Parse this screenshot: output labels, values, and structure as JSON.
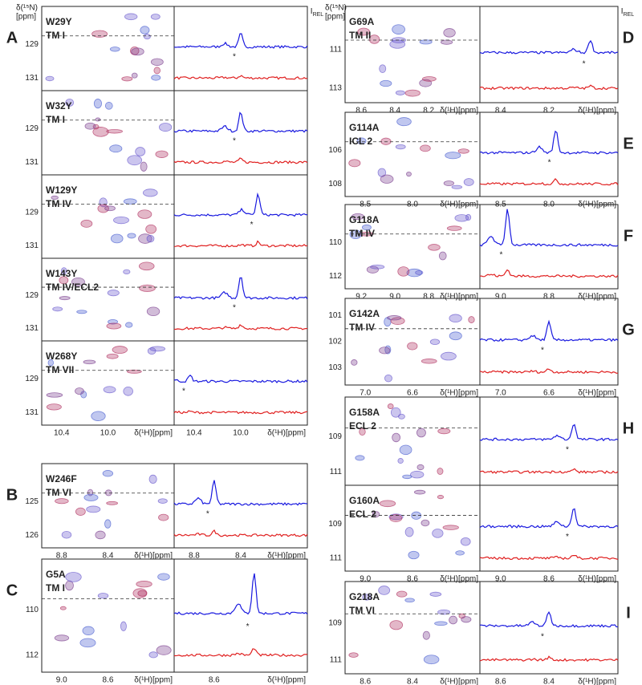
{
  "header": {
    "n_axis": [
      "δ(¹⁵N)",
      "[ppm]"
    ],
    "intensity": "I",
    "intensity_sub": "REL"
  },
  "h_axis_label": "δ(¹H)[ppm]",
  "peak_marker": "*",
  "panels": [
    {
      "letter": "A",
      "rows": [
        {
          "mutant": "W29Y",
          "region": "TM I",
          "n_ticks": [
            "129",
            "131"
          ]
        },
        {
          "mutant": "W32Y",
          "region": "TM I",
          "n_ticks": [
            "129",
            "131"
          ]
        },
        {
          "mutant": "W129Y",
          "region": "TM IV",
          "n_ticks": [
            "129",
            "131"
          ]
        },
        {
          "mutant": "W143Y",
          "region": "TM IV/ECL2",
          "n_ticks": [
            "129",
            "131"
          ]
        },
        {
          "mutant": "W268Y",
          "region": "TM VII",
          "n_ticks": [
            "129",
            "131"
          ]
        }
      ],
      "h_ticks_2d": [
        "10.4",
        "10.0"
      ],
      "h_ticks_1d": [
        "10.4",
        "10.0"
      ]
    },
    {
      "letter": "B",
      "rows": [
        {
          "mutant": "W246F",
          "region": "TM VI",
          "n_ticks": [
            "125",
            "126"
          ]
        }
      ],
      "h_ticks_2d": [
        "8.8",
        "8.4"
      ],
      "h_ticks_1d": [
        "8.8",
        "8.4"
      ]
    },
    {
      "letter": "C",
      "rows": [
        {
          "mutant": "G5A",
          "region": "TM I",
          "n_ticks": [
            "110",
            "112"
          ]
        }
      ],
      "h_ticks_2d": [
        "9.0",
        "8.6"
      ],
      "h_ticks_1d": [
        "8.6"
      ]
    },
    {
      "letter": "D",
      "rows": [
        {
          "mutant": "G69A",
          "region": "TM II",
          "n_ticks": [
            "111",
            "113"
          ]
        }
      ],
      "h_ticks_2d": [
        "8.6",
        "8.4",
        "8.2"
      ],
      "h_ticks_1d": [
        "8.4",
        "8.2"
      ]
    },
    {
      "letter": "E",
      "rows": [
        {
          "mutant": "G114A",
          "region": "ICL 2",
          "n_ticks": [
            "106",
            "108"
          ]
        }
      ],
      "h_ticks_2d": [
        "8.5",
        "8.0"
      ],
      "h_ticks_1d": [
        "8.5",
        "8.0"
      ]
    },
    {
      "letter": "F",
      "rows": [
        {
          "mutant": "G118A",
          "region": "TM IV",
          "n_ticks": [
            "110",
            "112"
          ]
        }
      ],
      "h_ticks_2d": [
        "9.2",
        "9.0",
        "8.8"
      ],
      "h_ticks_1d": [
        "9.0",
        "8.8"
      ]
    },
    {
      "letter": "G",
      "rows": [
        {
          "mutant": "G142A",
          "region": "TM IV",
          "n_ticks": [
            "101",
            "102",
            "103"
          ]
        }
      ],
      "h_ticks_2d": [
        "7.0",
        "6.6"
      ],
      "h_ticks_1d": [
        "7.0",
        "6.6"
      ]
    },
    {
      "letter": "H",
      "rows": [
        {
          "mutant": "G158A",
          "region": "ECL 2",
          "n_ticks": [
            "109",
            "111"
          ]
        },
        {
          "mutant": "G160A",
          "region": "ECL 2",
          "n_ticks": [
            "109",
            "111"
          ]
        }
      ],
      "h_ticks_2d": [
        "9.0",
        "8.6"
      ],
      "h_ticks_1d": [
        "9.0",
        "8.6"
      ]
    },
    {
      "letter": "I",
      "rows": [
        {
          "mutant": "G218A",
          "region": "TM VI",
          "n_ticks": [
            "109",
            "111"
          ]
        }
      ],
      "h_ticks_2d": [
        "8.6",
        "8.4"
      ],
      "h_ticks_1d": [
        "8.6",
        "8.4"
      ]
    }
  ]
}
